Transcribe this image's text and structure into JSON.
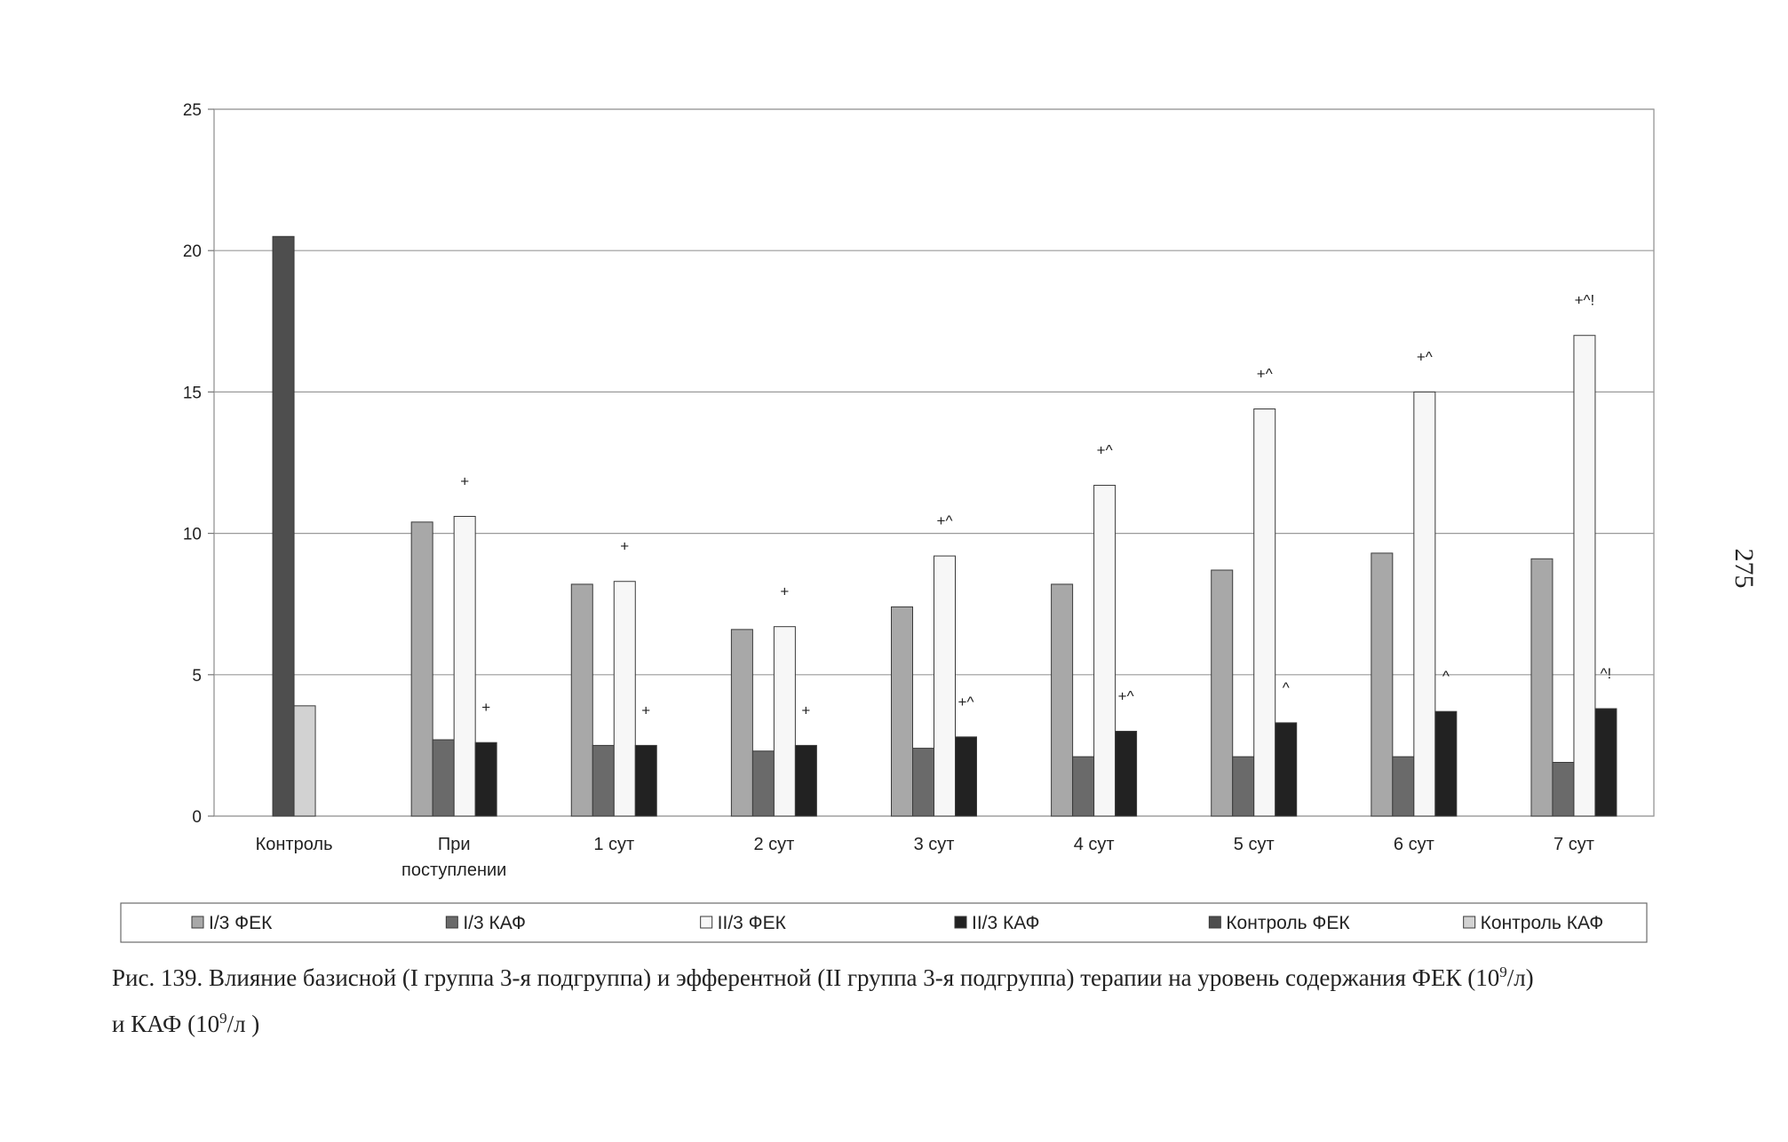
{
  "page_number": "275",
  "chart_data": {
    "type": "bar",
    "title": "",
    "xlabel": "",
    "ylabel": "",
    "ylim": [
      0,
      25
    ],
    "yticks": [
      0,
      5,
      10,
      15,
      20,
      25
    ],
    "grid": true,
    "legend_position": "bottom",
    "categories": [
      [
        "Контроль"
      ],
      [
        "При",
        "поступлении"
      ],
      [
        "1 сут"
      ],
      [
        "2 сут"
      ],
      [
        "3 сут"
      ],
      [
        "4 сут"
      ],
      [
        "5 сут"
      ],
      [
        "6 сут"
      ],
      [
        "7 сут"
      ]
    ],
    "series": [
      {
        "name": "I/3 ФЕК",
        "color": "#a8a8a8",
        "values": [
          null,
          10.4,
          8.2,
          6.6,
          7.4,
          8.2,
          8.7,
          9.3,
          9.1
        ]
      },
      {
        "name": "I/3 КАФ",
        "color": "#6a6a6a",
        "values": [
          null,
          2.7,
          2.5,
          2.3,
          2.4,
          2.1,
          2.1,
          2.1,
          1.9
        ]
      },
      {
        "name": "II/3 ФЕК",
        "color": "#f7f7f7",
        "values": [
          null,
          10.6,
          8.3,
          6.7,
          9.2,
          11.7,
          14.4,
          15.0,
          17.0
        ]
      },
      {
        "name": "II/3 КАФ",
        "color": "#222222",
        "values": [
          null,
          2.6,
          2.5,
          2.5,
          2.8,
          3.0,
          3.3,
          3.7,
          3.8
        ]
      },
      {
        "name": "Контроль ФЕК",
        "color": "#4e4e4e",
        "values": [
          20.5,
          null,
          null,
          null,
          null,
          null,
          null,
          null,
          null
        ]
      },
      {
        "name": "Контроль КАФ",
        "color": "#d2d2d2",
        "values": [
          3.9,
          null,
          null,
          null,
          null,
          null,
          null,
          null,
          null
        ]
      }
    ],
    "annotations": [
      {
        "category": 1,
        "series": 2,
        "text": "+"
      },
      {
        "category": 1,
        "series": 3,
        "text": "+"
      },
      {
        "category": 2,
        "series": 2,
        "text": "+"
      },
      {
        "category": 2,
        "series": 3,
        "text": "+"
      },
      {
        "category": 3,
        "series": 2,
        "text": "+"
      },
      {
        "category": 3,
        "series": 3,
        "text": "+"
      },
      {
        "category": 4,
        "series": 2,
        "text": "+^"
      },
      {
        "category": 4,
        "series": 3,
        "text": "+^"
      },
      {
        "category": 5,
        "series": 2,
        "text": "+^"
      },
      {
        "category": 5,
        "series": 3,
        "text": "+^"
      },
      {
        "category": 6,
        "series": 2,
        "text": "+^"
      },
      {
        "category": 6,
        "series": 3,
        "text": "^"
      },
      {
        "category": 7,
        "series": 2,
        "text": "+^"
      },
      {
        "category": 7,
        "series": 3,
        "text": "^"
      },
      {
        "category": 8,
        "series": 2,
        "text": "+^!"
      },
      {
        "category": 8,
        "series": 3,
        "text": "^!"
      }
    ]
  },
  "caption": {
    "line1_pre": "Рис. 139. Влияние базисной (I группа 3-я подгруппа) и эфферентной (II группа 3-я подгруппа) терапии на уровень содержания ФЕК (10",
    "exp1": "9",
    "line1_post": "/л)",
    "line2_pre": "и КАФ (10",
    "exp2": "9",
    "line2_post": "/л )"
  }
}
